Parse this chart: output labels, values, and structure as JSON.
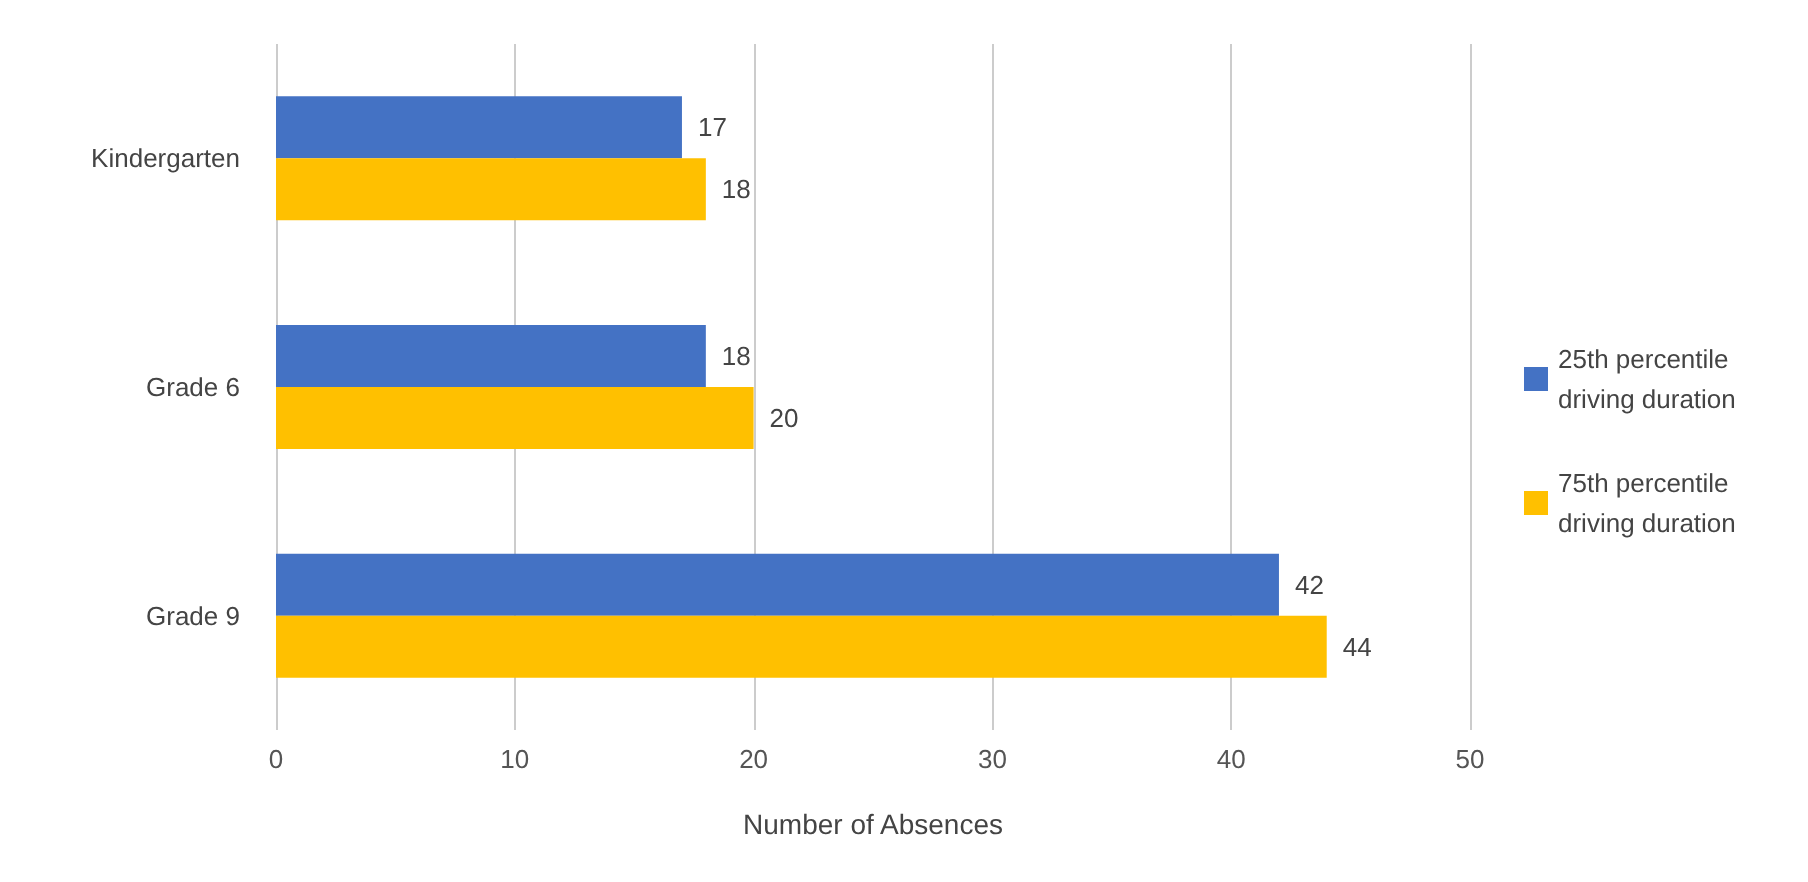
{
  "chart_data": {
    "type": "bar",
    "orientation": "horizontal",
    "xlabel": "Number of Absences",
    "categories": [
      "Kindergarten",
      "Grade 6",
      "Grade 9"
    ],
    "series": [
      {
        "name": "25th percentile driving duration",
        "color": "#4472c4",
        "values": [
          17,
          18,
          42
        ]
      },
      {
        "name": "75th percentile driving duration",
        "color": "#ffc000",
        "values": [
          18,
          20,
          44
        ]
      }
    ],
    "xlim": [
      0,
      50
    ],
    "xticks": [
      0,
      10,
      20,
      30,
      40,
      50
    ],
    "grid": "x",
    "legend": "right",
    "data_labels": true
  }
}
